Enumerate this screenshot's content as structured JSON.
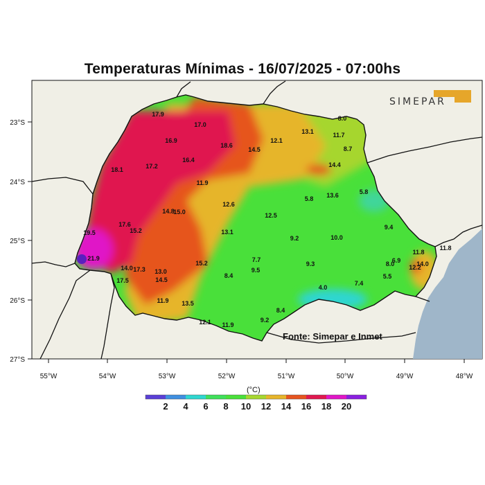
{
  "title": "Temperaturas Mínimas - 16/07/2025 - 07:00hs",
  "source_text": "Fonte: Simepar e Inmet",
  "logo_text": "SIMEPAR",
  "unit_label": "(°C)",
  "colors": {
    "background": "#f0efe6",
    "ocean": "#9fb6c9",
    "boundary": "#111111"
  },
  "x_ticks": [
    "55°W",
    "54°W",
    "53°W",
    "52°W",
    "51°W",
    "50°W",
    "49°W",
    "48°W"
  ],
  "y_ticks": [
    "23°S",
    "24°S",
    "25°S",
    "26°S",
    "27°S"
  ],
  "legend": {
    "labels": [
      "2",
      "4",
      "6",
      "8",
      "10",
      "12",
      "14",
      "16",
      "18",
      "20"
    ],
    "colors": [
      "#5a3fd6",
      "#3f8fe0",
      "#2fd6d0",
      "#3fe05a",
      "#49e03a",
      "#a6d62f",
      "#e6b52a",
      "#e6541f",
      "#e0184f",
      "#e016c7",
      "#8a1fe0"
    ]
  },
  "stations": [
    "17.9",
    "17.0",
    "16.9",
    "18.6",
    "14.5",
    "12.1",
    "13.1",
    "11.7",
    "8.0",
    "8.7",
    "18.1",
    "17.2",
    "16.4",
    "14.4",
    "11.9",
    "5.8",
    "13.6",
    "5.8",
    "12.6",
    "14.8",
    "15.0",
    "17.6",
    "15.2",
    "12.5",
    "9.4",
    "19.5",
    "13.1",
    "9.2",
    "10.0",
    "21.9",
    "11.8",
    "11.8",
    "14.0",
    "17.3",
    "15.2",
    "7.7",
    "9.3",
    "6.9",
    "8.0",
    "13.0",
    "12.2",
    "14.0",
    "9.5",
    "17.5",
    "14.5",
    "8.4",
    "5.5",
    "7.4",
    "4.0",
    "11.9",
    "13.5",
    "8.4",
    "12.1",
    "11.9",
    "9.2"
  ]
}
